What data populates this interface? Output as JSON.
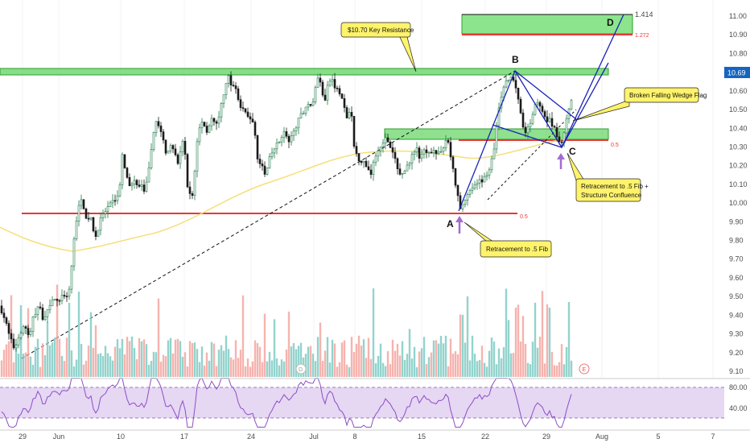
{
  "chart_data": {
    "type": "candlestick",
    "x_tick_labels": [
      "29",
      "Jun",
      "10",
      "17",
      "24",
      "Jul",
      "8",
      "15",
      "22",
      "29",
      "Aug",
      "5",
      "7"
    ],
    "y_tick_labels": [
      "11.00",
      "10.90",
      "10.80",
      "10.70",
      "10.60",
      "10.50",
      "10.40",
      "10.30",
      "10.20",
      "10.10",
      "10.00",
      "9.90",
      "9.80",
      "9.70",
      "9.60",
      "9.50",
      "9.40",
      "9.30",
      "9.20",
      "9.10"
    ],
    "ylim": [
      9.08,
      11.08
    ],
    "last_price_label": "10.69",
    "rsi_tick_labels": [
      "80.00",
      "40.00"
    ],
    "rsi_levels": [
      80,
      40
    ],
    "annotations": {
      "key_resistance": "$10.70 Key Resistance",
      "wedge_flag": "Broken Falling Wedge Flag",
      "retrace_structure": "Retracement to .5 Fib +\nStructure Confluence",
      "retrace_fib": "Retracement to .5 Fib",
      "fib_1414": "1.414",
      "fib_1272": "1.272",
      "fib_05_upper": "0.5",
      "fib_05_lower": "0.5"
    },
    "pattern_points": {
      "A": {
        "label": "A",
        "price": 9.96
      },
      "B": {
        "label": "B",
        "price": 10.7
      },
      "C": {
        "label": "C",
        "price": 10.31
      },
      "D": {
        "label": "D",
        "price": 11.02
      }
    },
    "zones": {
      "resistance": {
        "low": 10.67,
        "high": 10.71
      },
      "support": {
        "low": 10.35,
        "high": 10.4
      },
      "target": {
        "low": 10.92,
        "high": 11.02
      }
    },
    "levels": {
      "fib_05_lower": 9.95,
      "fib_05_upper": 10.34,
      "fib_1272": 10.9
    },
    "price_path": [
      [
        0,
        9.45
      ],
      [
        6,
        9.38
      ],
      [
        12,
        9.28
      ],
      [
        18,
        9.22
      ],
      [
        24,
        9.3
      ],
      [
        30,
        9.35
      ],
      [
        36,
        9.28
      ],
      [
        42,
        9.4
      ],
      [
        48,
        9.45
      ],
      [
        54,
        9.38
      ],
      [
        60,
        9.44
      ],
      [
        66,
        9.5
      ],
      [
        72,
        9.46
      ],
      [
        78,
        9.52
      ],
      [
        84,
        9.48
      ],
      [
        88,
        9.62
      ],
      [
        92,
        9.8
      ],
      [
        96,
        9.95
      ],
      [
        100,
        10.05
      ],
      [
        104,
        9.98
      ],
      [
        108,
        9.88
      ],
      [
        112,
        9.95
      ],
      [
        116,
        9.85
      ],
      [
        120,
        9.82
      ],
      [
        124,
        9.9
      ],
      [
        130,
        9.95
      ],
      [
        136,
        9.98
      ],
      [
        142,
        10.02
      ],
      [
        148,
        10.05
      ],
      [
        152,
        10.25
      ],
      [
        156,
        10.15
      ],
      [
        160,
        10.1
      ],
      [
        166,
        10.12
      ],
      [
        172,
        10.08
      ],
      [
        176,
        10.1
      ],
      [
        180,
        10.05
      ],
      [
        186,
        10.2
      ],
      [
        190,
        10.35
      ],
      [
        194,
        10.45
      ],
      [
        198,
        10.4
      ],
      [
        202,
        10.35
      ],
      [
        206,
        10.28
      ],
      [
        212,
        10.3
      ],
      [
        218,
        10.25
      ],
      [
        222,
        10.2
      ],
      [
        226,
        10.35
      ],
      [
        230,
        10.25
      ],
      [
        234,
        10.05
      ],
      [
        240,
        10.04
      ],
      [
        244,
        10.3
      ],
      [
        248,
        10.4
      ],
      [
        252,
        10.45
      ],
      [
        256,
        10.38
      ],
      [
        260,
        10.42
      ],
      [
        264,
        10.46
      ],
      [
        268,
        10.4
      ],
      [
        272,
        10.45
      ],
      [
        276,
        10.55
      ],
      [
        280,
        10.62
      ],
      [
        284,
        10.68
      ],
      [
        288,
        10.6
      ],
      [
        292,
        10.65
      ],
      [
        296,
        10.55
      ],
      [
        300,
        10.5
      ],
      [
        306,
        10.48
      ],
      [
        312,
        10.45
      ],
      [
        316,
        10.4
      ],
      [
        320,
        10.25
      ],
      [
        324,
        10.2
      ],
      [
        330,
        10.15
      ],
      [
        336,
        10.25
      ],
      [
        342,
        10.3
      ],
      [
        348,
        10.35
      ],
      [
        354,
        10.38
      ],
      [
        360,
        10.32
      ],
      [
        366,
        10.4
      ],
      [
        372,
        10.45
      ],
      [
        378,
        10.5
      ],
      [
        384,
        10.55
      ],
      [
        388,
        10.5
      ],
      [
        392,
        10.62
      ],
      [
        396,
        10.68
      ],
      [
        400,
        10.6
      ],
      [
        404,
        10.55
      ],
      [
        408,
        10.64
      ],
      [
        412,
        10.67
      ],
      [
        416,
        10.62
      ],
      [
        420,
        10.6
      ],
      [
        426,
        10.55
      ],
      [
        430,
        10.45
      ],
      [
        436,
        10.5
      ],
      [
        440,
        10.3
      ],
      [
        444,
        10.25
      ],
      [
        450,
        10.22
      ],
      [
        456,
        10.2
      ],
      [
        460,
        10.15
      ],
      [
        466,
        10.25
      ],
      [
        472,
        10.3
      ],
      [
        478,
        10.35
      ],
      [
        484,
        10.3
      ],
      [
        490,
        10.25
      ],
      [
        494,
        10.18
      ],
      [
        500,
        10.15
      ],
      [
        506,
        10.2
      ],
      [
        512,
        10.25
      ],
      [
        518,
        10.3
      ],
      [
        522,
        10.22
      ],
      [
        526,
        10.28
      ],
      [
        532,
        10.25
      ],
      [
        538,
        10.3
      ],
      [
        544,
        10.25
      ],
      [
        550,
        10.3
      ],
      [
        556,
        10.35
      ],
      [
        560,
        10.25
      ],
      [
        564,
        10.15
      ],
      [
        568,
        10.05
      ],
      [
        572,
        9.97
      ],
      [
        576,
        10.0
      ],
      [
        580,
        10.05
      ],
      [
        586,
        10.08
      ],
      [
        592,
        10.1
      ],
      [
        598,
        10.12
      ],
      [
        604,
        10.15
      ],
      [
        610,
        10.2
      ],
      [
        614,
        10.3
      ],
      [
        618,
        10.45
      ],
      [
        622,
        10.55
      ],
      [
        626,
        10.62
      ],
      [
        630,
        10.65
      ],
      [
        634,
        10.68
      ],
      [
        638,
        10.66
      ],
      [
        642,
        10.62
      ],
      [
        646,
        10.5
      ],
      [
        650,
        10.42
      ],
      [
        654,
        10.38
      ],
      [
        658,
        10.42
      ],
      [
        662,
        10.48
      ],
      [
        666,
        10.55
      ],
      [
        670,
        10.52
      ],
      [
        674,
        10.48
      ],
      [
        678,
        10.44
      ],
      [
        682,
        10.46
      ],
      [
        686,
        10.42
      ],
      [
        690,
        10.38
      ],
      [
        694,
        10.34
      ],
      [
        698,
        10.33
      ],
      [
        702,
        10.4
      ],
      [
        706,
        10.5
      ],
      [
        710,
        10.56
      ],
      [
        712,
        10.58
      ]
    ]
  }
}
